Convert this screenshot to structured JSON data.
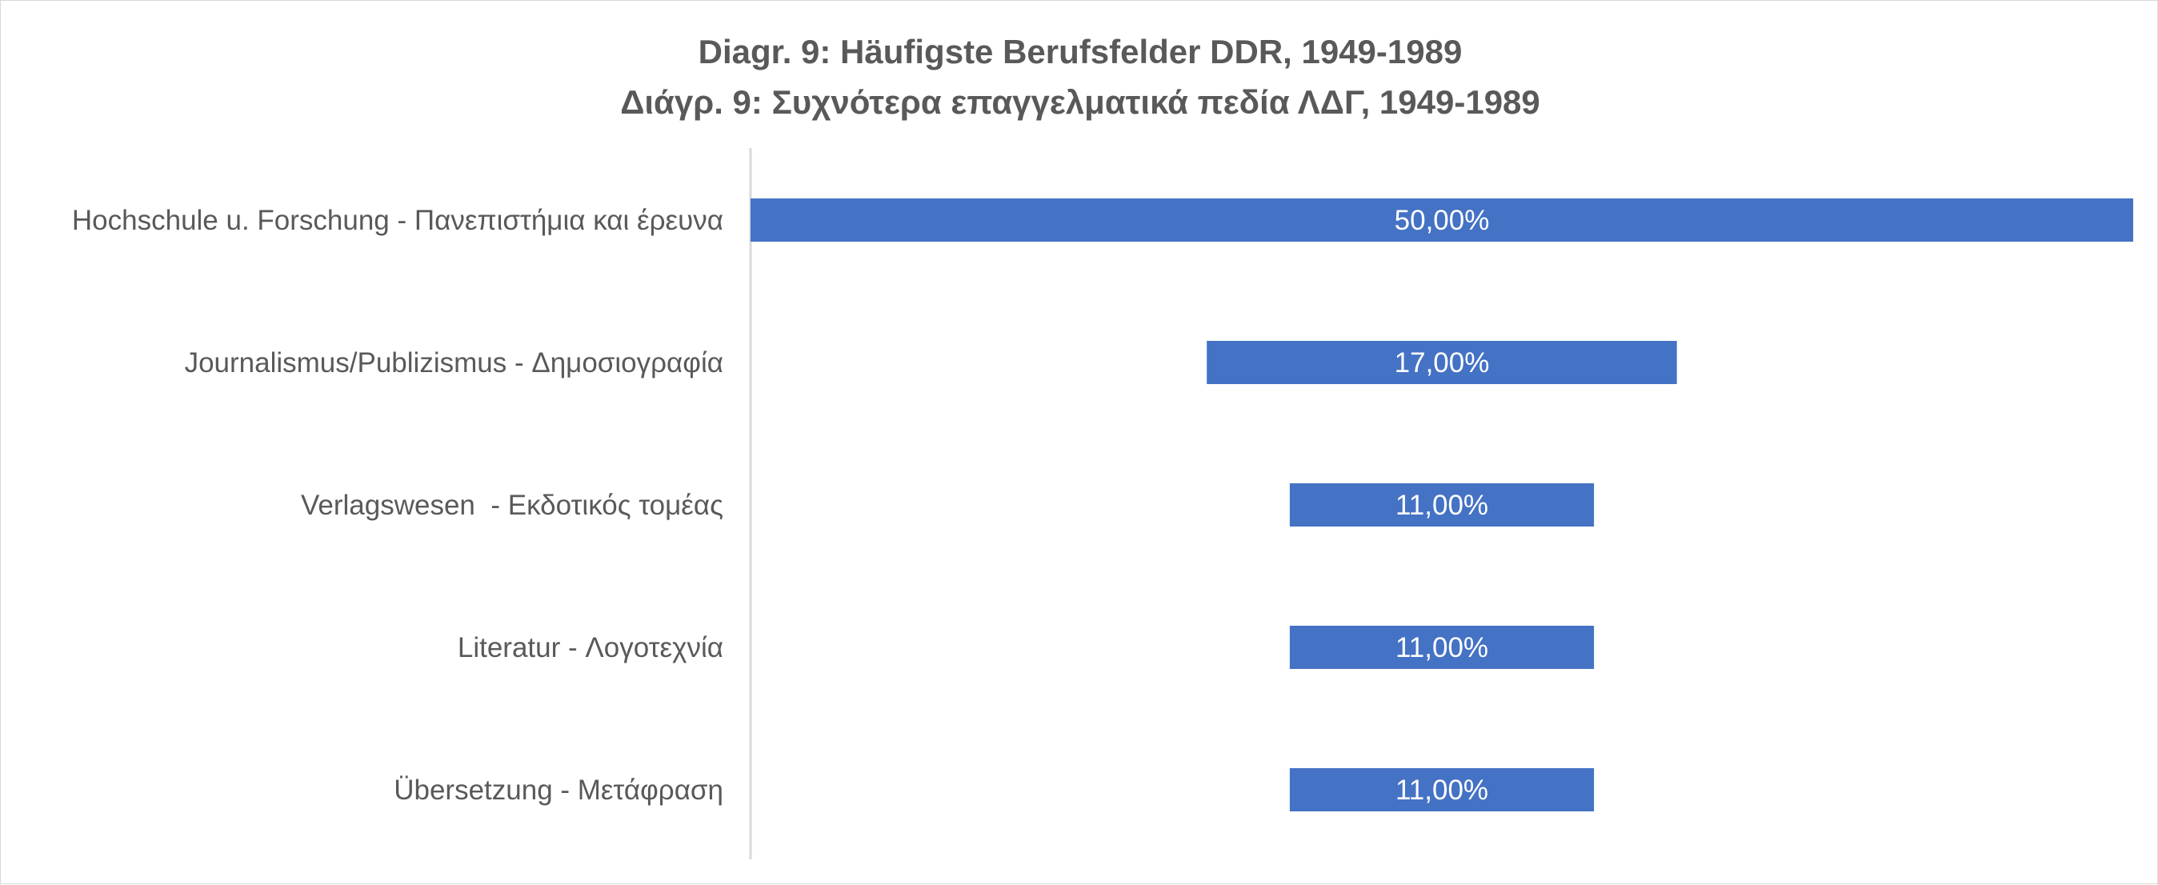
{
  "chart_data": {
    "type": "bar",
    "orientation": "horizontal",
    "title_lines": [
      "Diagr. 9: Häufigste Berufsfelder DDR, 1949-1989",
      "Διάγρ. 9: Συχνότερα επαγγελματικά πεδία ΛΔΓ, 1949-1989"
    ],
    "categories": [
      "Hochschule u. Forschung - Πανεπιστήμια και έρευνα",
      "Journalismus/Publizismus - Δημοσιογραφία",
      "Verlagswesen  - Εκδοτικός τομέας",
      "Literatur - Λογοτεχνία",
      "Übersetzung - Μετάφραση"
    ],
    "values": [
      50,
      17,
      11,
      11,
      11
    ],
    "data_labels": [
      "50,00%",
      "17,00%",
      "11,00%",
      "11,00%",
      "11,00%"
    ],
    "xlim": [
      0,
      50
    ],
    "bar_alignment": "centered",
    "bar_color": "#4472C4",
    "grid": false,
    "legend": "none"
  }
}
